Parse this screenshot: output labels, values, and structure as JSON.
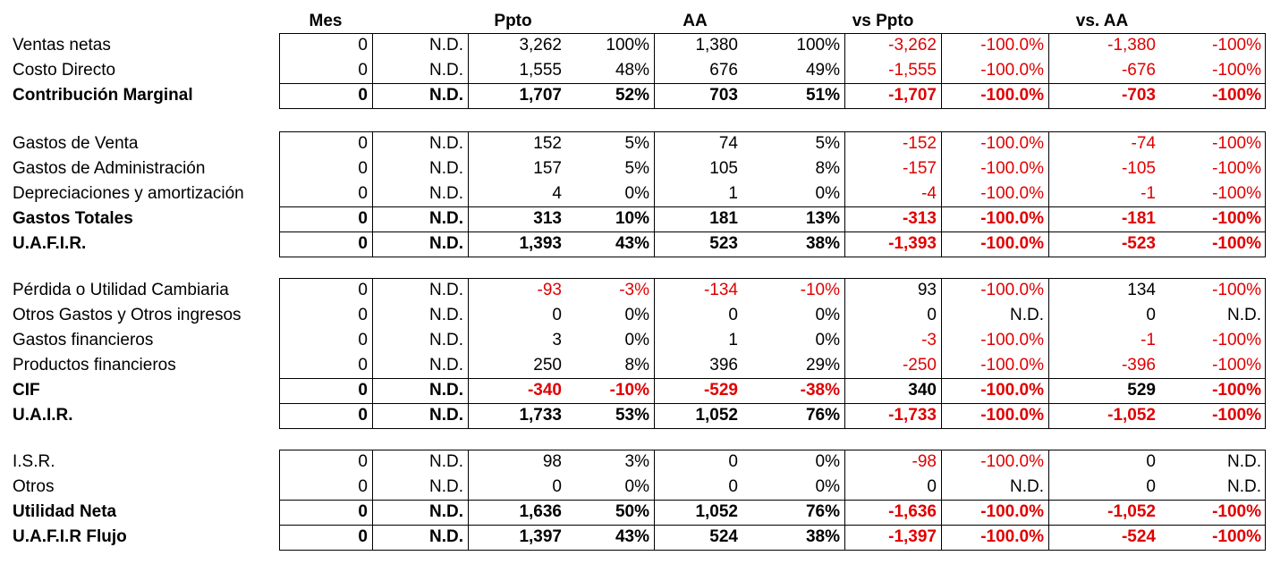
{
  "headers": [
    "Mes",
    "Ppto",
    "AA",
    "vs Ppto",
    "vs. AA"
  ],
  "red_color": "#e00000",
  "groups": [
    {
      "rows": [
        {
          "label": "Ventas netas",
          "bold": false,
          "values": [
            "0",
            "N.D.",
            "3,262",
            "100%",
            "1,380",
            "100%",
            "-3,262",
            "-100.0%",
            "-1,380",
            "-100%"
          ]
        },
        {
          "label": "Costo Directo",
          "bold": false,
          "values": [
            "0",
            "N.D.",
            "1,555",
            "48%",
            "676",
            "49%",
            "-1,555",
            "-100.0%",
            "-676",
            "-100%"
          ]
        }
      ],
      "totals": [
        {
          "label": "Contribución Marginal",
          "bold": true,
          "values": [
            "0",
            "N.D.",
            "1,707",
            "52%",
            "703",
            "51%",
            "-1,707",
            "-100.0%",
            "-703",
            "-100%"
          ]
        }
      ]
    },
    {
      "rows": [
        {
          "label": "Gastos de Venta",
          "bold": false,
          "values": [
            "0",
            "N.D.",
            "152",
            "5%",
            "74",
            "5%",
            "-152",
            "-100.0%",
            "-74",
            "-100%"
          ]
        },
        {
          "label": "Gastos de Administración",
          "bold": false,
          "values": [
            "0",
            "N.D.",
            "157",
            "5%",
            "105",
            "8%",
            "-157",
            "-100.0%",
            "-105",
            "-100%"
          ]
        },
        {
          "label": "Depreciaciones y amortización",
          "bold": false,
          "values": [
            "0",
            "N.D.",
            "4",
            "0%",
            "1",
            "0%",
            "-4",
            "-100.0%",
            "-1",
            "-100%"
          ]
        }
      ],
      "totals": [
        {
          "label": "Gastos Totales",
          "bold": true,
          "values": [
            "0",
            "N.D.",
            "313",
            "10%",
            "181",
            "13%",
            "-313",
            "-100.0%",
            "-181",
            "-100%"
          ]
        },
        {
          "label": "U.A.F.I.R.",
          "bold": true,
          "values": [
            "0",
            "N.D.",
            "1,393",
            "43%",
            "523",
            "38%",
            "-1,393",
            "-100.0%",
            "-523",
            "-100%"
          ]
        }
      ]
    },
    {
      "rows": [
        {
          "label": "Pérdida o Utilidad Cambiaria",
          "bold": false,
          "values": [
            "0",
            "N.D.",
            "-93",
            "-3%",
            "-134",
            "-10%",
            "93",
            "-100.0%",
            "134",
            "-100%"
          ]
        },
        {
          "label": "Otros Gastos y Otros ingresos",
          "bold": false,
          "values": [
            "0",
            "N.D.",
            "0",
            "0%",
            "0",
            "0%",
            "0",
            "N.D.",
            "0",
            "N.D."
          ]
        },
        {
          "label": "Gastos financieros",
          "bold": false,
          "values": [
            "0",
            "N.D.",
            "3",
            "0%",
            "1",
            "0%",
            "-3",
            "-100.0%",
            "-1",
            "-100%"
          ]
        },
        {
          "label": "Productos financieros",
          "bold": false,
          "values": [
            "0",
            "N.D.",
            "250",
            "8%",
            "396",
            "29%",
            "-250",
            "-100.0%",
            "-396",
            "-100%"
          ]
        }
      ],
      "totals": [
        {
          "label": "CIF",
          "bold": true,
          "values": [
            "0",
            "N.D.",
            "-340",
            "-10%",
            "-529",
            "-38%",
            "340",
            "-100.0%",
            "529",
            "-100%"
          ]
        },
        {
          "label": "U.A.I.R.",
          "bold": true,
          "values": [
            "0",
            "N.D.",
            "1,733",
            "53%",
            "1,052",
            "76%",
            "-1,733",
            "-100.0%",
            "-1,052",
            "-100%"
          ]
        }
      ]
    },
    {
      "rows": [
        {
          "label": "I.S.R.",
          "bold": false,
          "values": [
            "0",
            "N.D.",
            "98",
            "3%",
            "0",
            "0%",
            "-98",
            "-100.0%",
            "0",
            "N.D."
          ]
        },
        {
          "label": "Otros",
          "bold": false,
          "values": [
            "0",
            "N.D.",
            "0",
            "0%",
            "0",
            "0%",
            "0",
            "N.D.",
            "0",
            "N.D."
          ]
        }
      ],
      "totals": [
        {
          "label": "Utilidad Neta",
          "bold": true,
          "values": [
            "0",
            "N.D.",
            "1,636",
            "50%",
            "1,052",
            "76%",
            "-1,636",
            "-100.0%",
            "-1,052",
            "-100%"
          ]
        },
        {
          "label": "U.A.F.I.R Flujo",
          "bold": true,
          "values": [
            "0",
            "N.D.",
            "1,397",
            "43%",
            "524",
            "38%",
            "-1,397",
            "-100.0%",
            "-524",
            "-100%"
          ]
        }
      ]
    }
  ]
}
